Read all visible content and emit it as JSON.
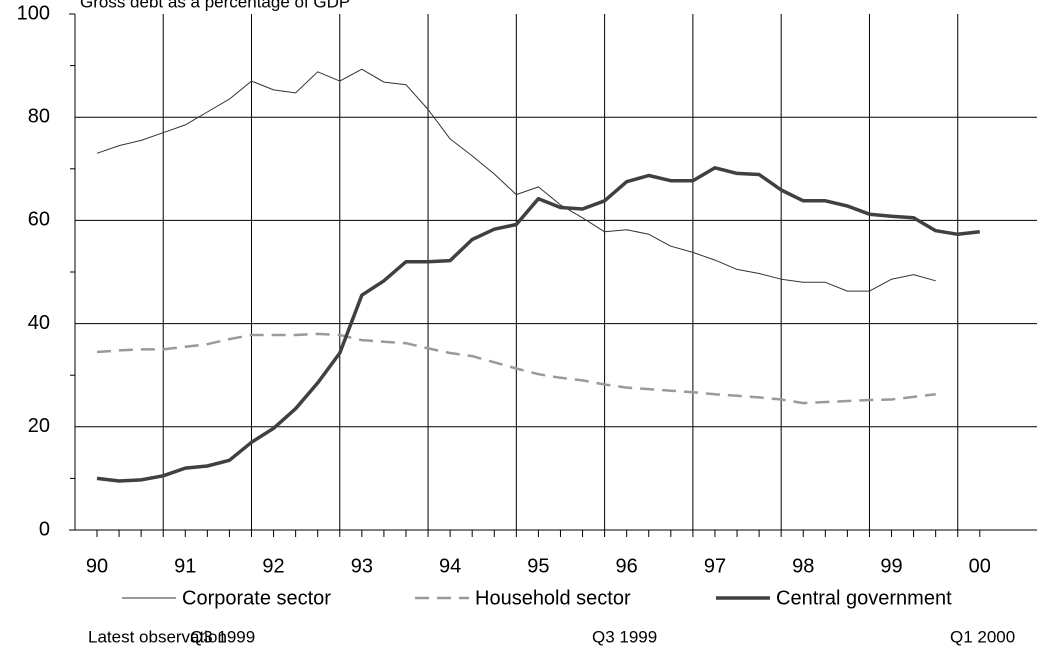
{
  "chart_data": {
    "type": "line",
    "title": "Gross debt as a percentage of GDP",
    "categories": [
      "90",
      null,
      null,
      null,
      "91",
      null,
      null,
      null,
      "92",
      null,
      null,
      null,
      "93",
      null,
      null,
      null,
      "94",
      null,
      null,
      null,
      "95",
      null,
      null,
      null,
      "96",
      null,
      null,
      null,
      "97",
      null,
      null,
      null,
      "98",
      null,
      null,
      null,
      "99",
      null,
      null,
      null,
      "00"
    ],
    "series": [
      {
        "name": "Corporate sector",
        "color": "#333333",
        "style": "thin",
        "latest": "Q3 1999",
        "values": [
          73,
          74.5,
          75.5,
          77,
          78.5,
          81,
          83.5,
          87,
          85.3,
          84.7,
          88.8,
          87,
          89.3,
          86.8,
          86.3,
          81.5,
          75.8,
          72.5,
          69,
          65,
          66.5,
          63,
          60.5,
          57.8,
          58.2,
          57.3,
          55,
          53.8,
          52.3,
          50.5,
          49.7,
          48.6,
          48,
          48,
          46.3,
          46.3,
          48.6,
          49.5,
          48.3,
          null,
          null
        ]
      },
      {
        "name": "Household sector",
        "color": "#9a9a9a",
        "style": "dashed",
        "latest": "Q3 1999",
        "values": [
          34.5,
          34.8,
          35,
          35,
          35.5,
          36,
          37,
          37.8,
          37.8,
          37.8,
          38,
          37.8,
          36.8,
          36.5,
          36.2,
          35.2,
          34.3,
          33.7,
          32.5,
          31.3,
          30.2,
          29.5,
          29,
          28.2,
          27.6,
          27.3,
          27,
          26.7,
          26.3,
          26,
          25.7,
          25.3,
          24.6,
          24.8,
          25,
          25.2,
          25.3,
          25.8,
          26.3,
          null,
          null
        ]
      },
      {
        "name": "Central government",
        "color": "#404040",
        "style": "thick",
        "latest": "Q1 2000",
        "values": [
          10,
          9.5,
          9.7,
          10.5,
          12,
          12.4,
          13.5,
          17,
          19.7,
          23.5,
          28.5,
          34.3,
          45.5,
          48.3,
          52,
          52,
          52.2,
          56.3,
          58.3,
          59.2,
          64.2,
          62.5,
          62.2,
          63.8,
          67.5,
          68.7,
          67.7,
          67.7,
          70.2,
          69.1,
          68.9,
          65.9,
          63.8,
          63.8,
          62.8,
          61.2,
          60.8,
          60.5,
          58,
          57.3,
          57.8
        ]
      }
    ],
    "note": "Latest observation",
    "ylim": [
      0,
      100
    ],
    "yticks": [
      0,
      20,
      40,
      60,
      80,
      100
    ],
    "grid": true,
    "legend": "bottom"
  }
}
